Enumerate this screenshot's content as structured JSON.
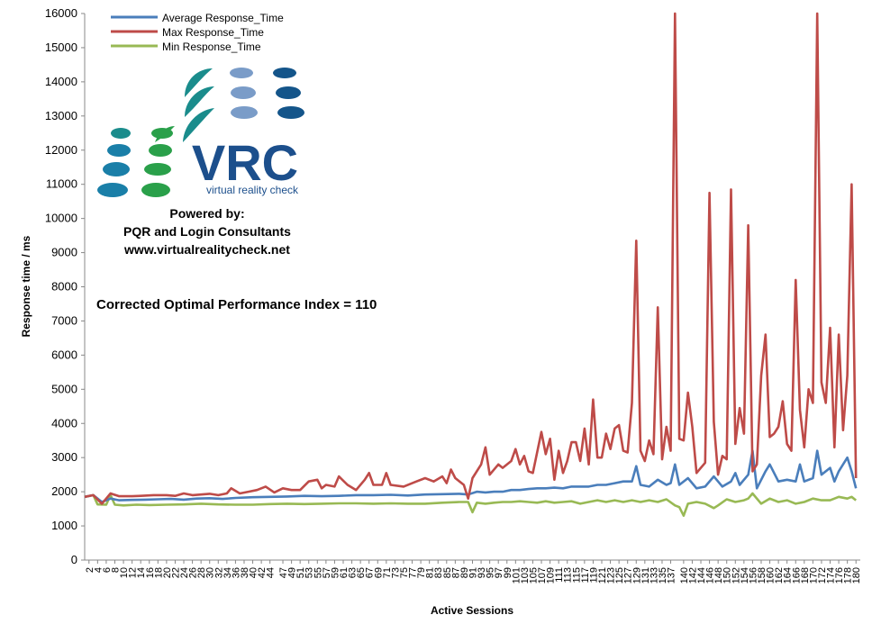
{
  "colors": {
    "avg": "#4a7ebb",
    "max": "#be4b48",
    "min": "#98b954",
    "vrc_teal": "#1a8c8c",
    "vrc_blue": "#14558a",
    "vrc_green": "#2aa04a",
    "vrc_light": "#7a9cc8"
  },
  "logo": {
    "text": "VRC",
    "tagline": "virtual reality check",
    "powered_by": "Powered by:",
    "partners": "PQR and Login Consultants",
    "website": "www.virtualrealitycheck.net"
  },
  "annotation": "Corrected Optimal Performance Index = 110",
  "chart_data": {
    "type": "line",
    "xlabel": "Active Sessions",
    "ylabel": "Response time / ms",
    "ylim": [
      0,
      16000
    ],
    "yticks": [
      0,
      1000,
      2000,
      3000,
      4000,
      5000,
      6000,
      7000,
      8000,
      9000,
      10000,
      11000,
      12000,
      13000,
      14000,
      15000,
      16000
    ],
    "xlim": [
      1,
      181
    ],
    "xticks": [
      2,
      4,
      6,
      8,
      10,
      12,
      14,
      16,
      18,
      20,
      22,
      24,
      26,
      28,
      30,
      32,
      34,
      36,
      38,
      40,
      42,
      44,
      47,
      49,
      51,
      53,
      55,
      57,
      59,
      61,
      63,
      65,
      67,
      69,
      71,
      73,
      75,
      77,
      79,
      81,
      83,
      85,
      87,
      89,
      91,
      93,
      95,
      97,
      99,
      101,
      103,
      105,
      107,
      109,
      111,
      113,
      115,
      117,
      119,
      121,
      123,
      125,
      127,
      129,
      131,
      133,
      135,
      137,
      140,
      142,
      144,
      146,
      148,
      150,
      152,
      154,
      156,
      158,
      160,
      162,
      164,
      166,
      168,
      170,
      172,
      174,
      176,
      178,
      180
    ],
    "legend": "top-left",
    "grid": false,
    "series": [
      {
        "name": "Average Response_Time",
        "color_key": "avg",
        "points": [
          [
            1,
            1850
          ],
          [
            3,
            1900
          ],
          [
            5,
            1700
          ],
          [
            7,
            1800
          ],
          [
            9,
            1750
          ],
          [
            12,
            1760
          ],
          [
            15,
            1770
          ],
          [
            18,
            1780
          ],
          [
            21,
            1790
          ],
          [
            24,
            1770
          ],
          [
            27,
            1800
          ],
          [
            30,
            1810
          ],
          [
            33,
            1790
          ],
          [
            36,
            1820
          ],
          [
            40,
            1840
          ],
          [
            44,
            1850
          ],
          [
            48,
            1860
          ],
          [
            52,
            1880
          ],
          [
            56,
            1870
          ],
          [
            60,
            1880
          ],
          [
            64,
            1900
          ],
          [
            68,
            1900
          ],
          [
            72,
            1910
          ],
          [
            76,
            1890
          ],
          [
            80,
            1920
          ],
          [
            84,
            1930
          ],
          [
            88,
            1940
          ],
          [
            90,
            1920
          ],
          [
            92,
            2000
          ],
          [
            94,
            1980
          ],
          [
            96,
            2000
          ],
          [
            98,
            2000
          ],
          [
            100,
            2050
          ],
          [
            102,
            2050
          ],
          [
            104,
            2080
          ],
          [
            106,
            2100
          ],
          [
            108,
            2100
          ],
          [
            110,
            2120
          ],
          [
            112,
            2100
          ],
          [
            114,
            2150
          ],
          [
            116,
            2150
          ],
          [
            118,
            2150
          ],
          [
            120,
            2200
          ],
          [
            122,
            2200
          ],
          [
            124,
            2250
          ],
          [
            126,
            2300
          ],
          [
            128,
            2300
          ],
          [
            129,
            2750
          ],
          [
            130,
            2200
          ],
          [
            132,
            2150
          ],
          [
            134,
            2350
          ],
          [
            136,
            2200
          ],
          [
            137,
            2250
          ],
          [
            138,
            2800
          ],
          [
            139,
            2200
          ],
          [
            141,
            2400
          ],
          [
            143,
            2100
          ],
          [
            145,
            2150
          ],
          [
            147,
            2450
          ],
          [
            149,
            2150
          ],
          [
            151,
            2300
          ],
          [
            152,
            2550
          ],
          [
            153,
            2200
          ],
          [
            155,
            2500
          ],
          [
            156,
            3200
          ],
          [
            157,
            2100
          ],
          [
            159,
            2600
          ],
          [
            160,
            2800
          ],
          [
            162,
            2300
          ],
          [
            164,
            2350
          ],
          [
            166,
            2300
          ],
          [
            167,
            2800
          ],
          [
            168,
            2300
          ],
          [
            170,
            2400
          ],
          [
            171,
            3200
          ],
          [
            172,
            2500
          ],
          [
            174,
            2700
          ],
          [
            175,
            2300
          ],
          [
            176,
            2600
          ],
          [
            178,
            3000
          ],
          [
            179,
            2600
          ],
          [
            180,
            2100
          ]
        ]
      },
      {
        "name": "Max Response_Time",
        "color_key": "max",
        "points": [
          [
            1,
            1850
          ],
          [
            3,
            1900
          ],
          [
            5,
            1650
          ],
          [
            7,
            1950
          ],
          [
            9,
            1870
          ],
          [
            12,
            1870
          ],
          [
            14,
            1880
          ],
          [
            17,
            1900
          ],
          [
            20,
            1900
          ],
          [
            22,
            1880
          ],
          [
            24,
            1950
          ],
          [
            26,
            1900
          ],
          [
            28,
            1920
          ],
          [
            30,
            1940
          ],
          [
            32,
            1900
          ],
          [
            34,
            1950
          ],
          [
            35,
            2100
          ],
          [
            37,
            1950
          ],
          [
            39,
            2000
          ],
          [
            41,
            2050
          ],
          [
            43,
            2150
          ],
          [
            45,
            1980
          ],
          [
            47,
            2100
          ],
          [
            49,
            2050
          ],
          [
            51,
            2050
          ],
          [
            53,
            2300
          ],
          [
            55,
            2350
          ],
          [
            56,
            2100
          ],
          [
            57,
            2200
          ],
          [
            59,
            2150
          ],
          [
            60,
            2450
          ],
          [
            62,
            2200
          ],
          [
            64,
            2050
          ],
          [
            66,
            2350
          ],
          [
            67,
            2550
          ],
          [
            68,
            2200
          ],
          [
            70,
            2200
          ],
          [
            71,
            2550
          ],
          [
            72,
            2200
          ],
          [
            75,
            2150
          ],
          [
            78,
            2300
          ],
          [
            80,
            2400
          ],
          [
            82,
            2300
          ],
          [
            84,
            2450
          ],
          [
            85,
            2250
          ],
          [
            86,
            2650
          ],
          [
            87,
            2400
          ],
          [
            89,
            2200
          ],
          [
            90,
            1800
          ],
          [
            91,
            2400
          ],
          [
            93,
            2800
          ],
          [
            94,
            3300
          ],
          [
            95,
            2500
          ],
          [
            97,
            2800
          ],
          [
            98,
            2700
          ],
          [
            100,
            2900
          ],
          [
            101,
            3250
          ],
          [
            102,
            2800
          ],
          [
            103,
            3050
          ],
          [
            104,
            2600
          ],
          [
            105,
            2550
          ],
          [
            107,
            3750
          ],
          [
            108,
            3100
          ],
          [
            109,
            3550
          ],
          [
            110,
            2350
          ],
          [
            111,
            3200
          ],
          [
            112,
            2550
          ],
          [
            113,
            2900
          ],
          [
            114,
            3450
          ],
          [
            115,
            3450
          ],
          [
            116,
            2900
          ],
          [
            117,
            3850
          ],
          [
            118,
            2800
          ],
          [
            119,
            4700
          ],
          [
            120,
            3000
          ],
          [
            121,
            3000
          ],
          [
            122,
            3700
          ],
          [
            123,
            3250
          ],
          [
            124,
            3850
          ],
          [
            125,
            3950
          ],
          [
            126,
            3200
          ],
          [
            127,
            3150
          ],
          [
            128,
            4600
          ],
          [
            129,
            9350
          ],
          [
            130,
            3200
          ],
          [
            131,
            2900
          ],
          [
            132,
            3500
          ],
          [
            133,
            3100
          ],
          [
            134,
            7400
          ],
          [
            135,
            2950
          ],
          [
            136,
            3900
          ],
          [
            137,
            3200
          ],
          [
            138,
            16000
          ],
          [
            139,
            3550
          ],
          [
            140,
            3500
          ],
          [
            141,
            4900
          ],
          [
            142,
            3900
          ],
          [
            143,
            2550
          ],
          [
            144,
            2700
          ],
          [
            145,
            2850
          ],
          [
            146,
            10750
          ],
          [
            147,
            4050
          ],
          [
            148,
            2500
          ],
          [
            149,
            3050
          ],
          [
            150,
            2950
          ],
          [
            151,
            10850
          ],
          [
            152,
            3400
          ],
          [
            153,
            4450
          ],
          [
            154,
            3700
          ],
          [
            155,
            9800
          ],
          [
            156,
            2600
          ],
          [
            157,
            2800
          ],
          [
            158,
            5400
          ],
          [
            159,
            6600
          ],
          [
            160,
            3600
          ],
          [
            161,
            3700
          ],
          [
            162,
            3900
          ],
          [
            163,
            4650
          ],
          [
            164,
            3400
          ],
          [
            165,
            3200
          ],
          [
            166,
            8200
          ],
          [
            167,
            4400
          ],
          [
            168,
            3300
          ],
          [
            169,
            5000
          ],
          [
            170,
            4600
          ],
          [
            171,
            16000
          ],
          [
            172,
            5200
          ],
          [
            173,
            4600
          ],
          [
            174,
            6800
          ],
          [
            175,
            3300
          ],
          [
            176,
            6600
          ],
          [
            177,
            3800
          ],
          [
            178,
            5400
          ],
          [
            179,
            11000
          ],
          [
            180,
            2400
          ]
        ]
      },
      {
        "name": "Min Response_Time",
        "color_key": "min",
        "points": [
          [
            1,
            1850
          ],
          [
            3,
            1900
          ],
          [
            4,
            1630
          ],
          [
            6,
            1620
          ],
          [
            7,
            1900
          ],
          [
            8,
            1620
          ],
          [
            10,
            1600
          ],
          [
            13,
            1620
          ],
          [
            16,
            1610
          ],
          [
            20,
            1620
          ],
          [
            24,
            1630
          ],
          [
            28,
            1650
          ],
          [
            32,
            1630
          ],
          [
            36,
            1620
          ],
          [
            40,
            1620
          ],
          [
            44,
            1640
          ],
          [
            48,
            1650
          ],
          [
            52,
            1640
          ],
          [
            56,
            1650
          ],
          [
            60,
            1660
          ],
          [
            64,
            1660
          ],
          [
            68,
            1650
          ],
          [
            72,
            1660
          ],
          [
            76,
            1650
          ],
          [
            80,
            1650
          ],
          [
            84,
            1680
          ],
          [
            88,
            1700
          ],
          [
            90,
            1700
          ],
          [
            91,
            1400
          ],
          [
            92,
            1680
          ],
          [
            94,
            1650
          ],
          [
            96,
            1680
          ],
          [
            98,
            1700
          ],
          [
            100,
            1700
          ],
          [
            102,
            1720
          ],
          [
            104,
            1700
          ],
          [
            106,
            1680
          ],
          [
            108,
            1720
          ],
          [
            110,
            1680
          ],
          [
            112,
            1700
          ],
          [
            114,
            1720
          ],
          [
            116,
            1650
          ],
          [
            118,
            1700
          ],
          [
            120,
            1750
          ],
          [
            122,
            1700
          ],
          [
            124,
            1750
          ],
          [
            126,
            1700
          ],
          [
            128,
            1750
          ],
          [
            130,
            1700
          ],
          [
            132,
            1750
          ],
          [
            134,
            1700
          ],
          [
            136,
            1780
          ],
          [
            138,
            1600
          ],
          [
            139,
            1550
          ],
          [
            140,
            1300
          ],
          [
            141,
            1650
          ],
          [
            143,
            1700
          ],
          [
            145,
            1650
          ],
          [
            147,
            1520
          ],
          [
            148,
            1600
          ],
          [
            150,
            1780
          ],
          [
            152,
            1700
          ],
          [
            154,
            1750
          ],
          [
            155,
            1800
          ],
          [
            156,
            1950
          ],
          [
            158,
            1650
          ],
          [
            160,
            1800
          ],
          [
            162,
            1700
          ],
          [
            164,
            1750
          ],
          [
            166,
            1650
          ],
          [
            168,
            1700
          ],
          [
            170,
            1800
          ],
          [
            172,
            1750
          ],
          [
            174,
            1750
          ],
          [
            176,
            1850
          ],
          [
            178,
            1800
          ],
          [
            179,
            1850
          ],
          [
            180,
            1750
          ]
        ]
      }
    ]
  }
}
